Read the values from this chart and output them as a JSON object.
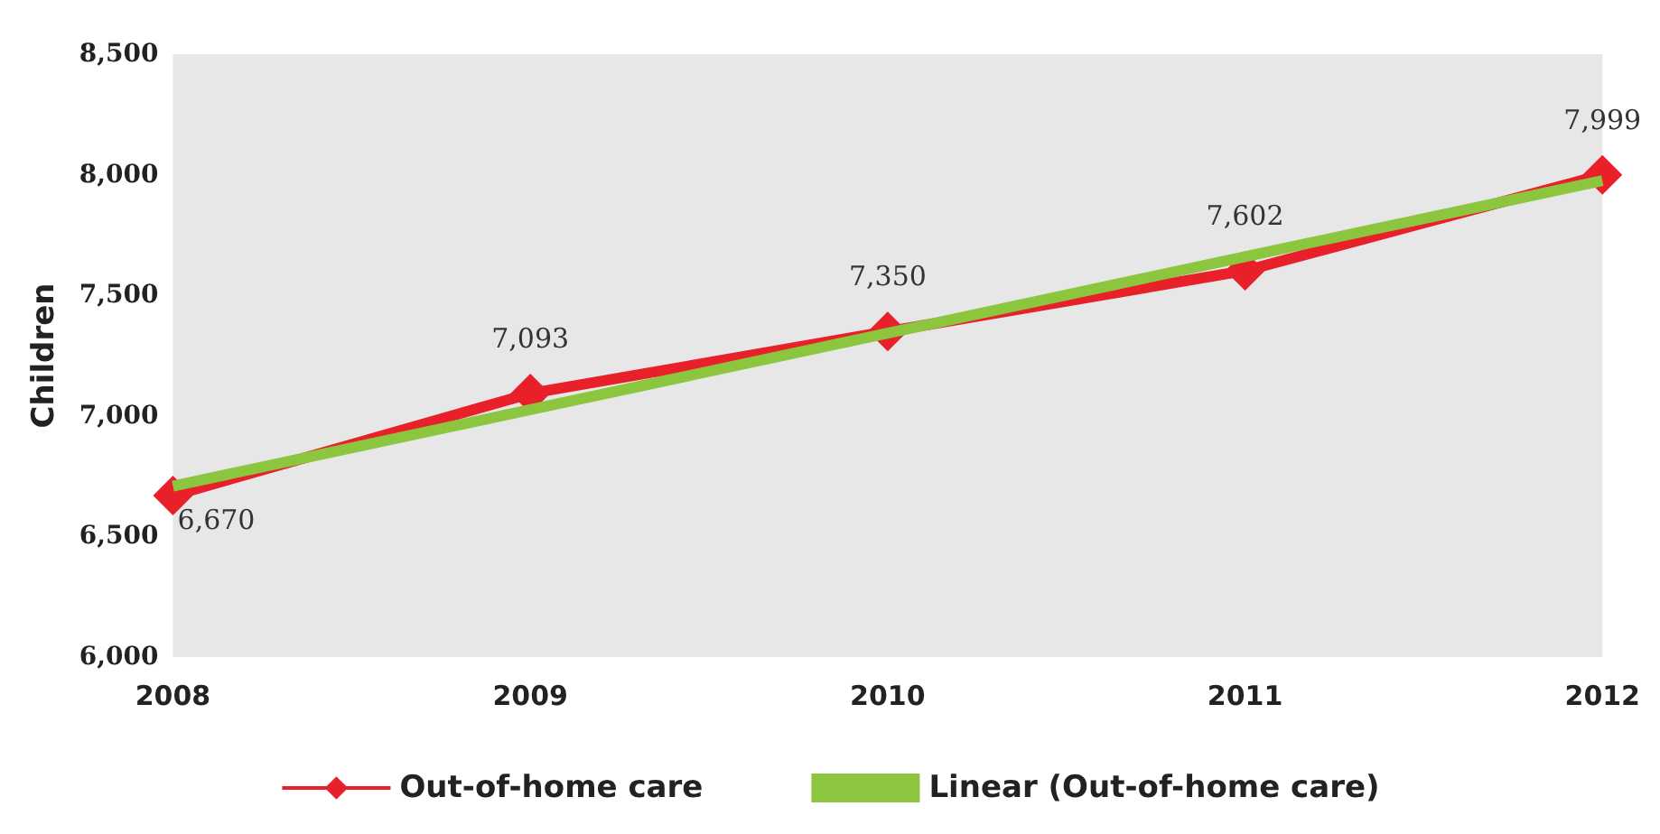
{
  "chart_data": {
    "type": "line",
    "ylabel": "Children",
    "categories": [
      "2008",
      "2009",
      "2010",
      "2011",
      "2012"
    ],
    "series": [
      {
        "name": "Out-of-home care",
        "color": "#e8202a",
        "values": [
          6670,
          7093,
          7350,
          7602,
          7999
        ],
        "marker": "diamond",
        "value_labels": [
          "6,670",
          "7,093",
          "7,350",
          "7,602",
          "7,999"
        ]
      },
      {
        "name": "Linear (Out-of-home care)",
        "color": "#8cc63f",
        "values": [
          6709,
          7026,
          7343,
          7660,
          7976
        ],
        "marker": "none"
      }
    ],
    "ylim": [
      6000,
      8500
    ],
    "yticks": [
      {
        "value": 6000,
        "label": "6,000"
      },
      {
        "value": 6500,
        "label": "6,500"
      },
      {
        "value": 7000,
        "label": "7,000"
      },
      {
        "value": 7500,
        "label": "7,500"
      },
      {
        "value": 8000,
        "label": "8,000"
      },
      {
        "value": 8500,
        "label": "8,500"
      }
    ],
    "grid": false,
    "legend": "bottom"
  }
}
